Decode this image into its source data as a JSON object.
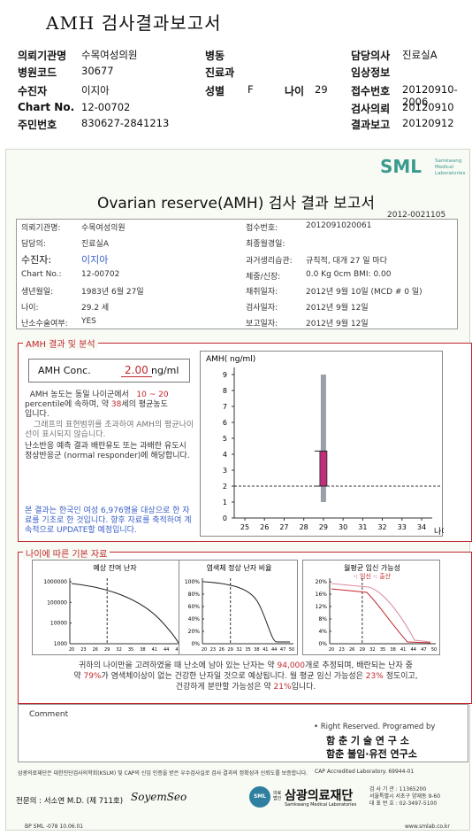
{
  "header": {
    "title": "AMH 검사결과보고서",
    "rows": [
      {
        "l1": "의뢰기관명",
        "v1": "수목여성의원",
        "l2": "병동",
        "v2": "",
        "l3": "담당의사",
        "v3": "진료실A"
      },
      {
        "l1": "병원코드",
        "v1": "30677",
        "l2": "진료과",
        "v2": "",
        "l3": "임상정보",
        "v3": ""
      },
      {
        "l1": "수진자",
        "v1": "이지아",
        "l2": "성별",
        "v2": "F",
        "l2b": "나이",
        "v2b": "29",
        "l3": "접수번호",
        "v3": "20120910-2006"
      },
      {
        "l1": "Chart No.",
        "v1": "12-00702",
        "l2": "",
        "v2": "",
        "l3": "검사의뢰",
        "v3": "20120910"
      },
      {
        "l1": "주민번호",
        "v1": "830627-2841213",
        "l2": "",
        "v2": "",
        "l3": "결과보고",
        "v3": "20120912"
      }
    ]
  },
  "report": {
    "logo": "SML",
    "logo_sub": [
      "Samkwang",
      "Medical",
      "Laboratories"
    ],
    "title": "Ovarian reserve(AMH) 검사 결과 보고서",
    "report_no": "2012-0021105",
    "left_fields": [
      {
        "label": "의뢰기관명:",
        "value": "수목여성의원"
      },
      {
        "label": "담당의:",
        "value": "진료실A"
      },
      {
        "label": "수진자:",
        "value": "이지아"
      },
      {
        "label": "Chart No.:",
        "value": "12-00702"
      },
      {
        "label": "생년월일:",
        "value": "1983년 6월 27일"
      },
      {
        "label": "나이:",
        "value": "29.2 세"
      },
      {
        "label": "난소수술여부:",
        "value": "YES"
      }
    ],
    "right_fields": [
      {
        "label": "접수번호:",
        "value": "20120910​20061"
      },
      {
        "label": "최종월경일:",
        "value": ""
      },
      {
        "label": "과거생리습관:",
        "value": "규칙적, 대개  27 일 마다"
      },
      {
        "label": "체중/신장:",
        "value": "0.0 Kg      0cm   BMI:  0.00"
      },
      {
        "label": "채취일자:",
        "value": "2012년 9월 10일   (MCD # 0 일)"
      },
      {
        "label": "검사일자:",
        "value": "2012년 9월 12일"
      },
      {
        "label": "보고일자:",
        "value": "2012년 9월 12일"
      }
    ]
  },
  "amh": {
    "section_title": "AMH 결과 및 분석",
    "conc_label": "AMH Conc.",
    "conc_value": "2.00",
    "conc_unit": "ng/ml",
    "text1a": "AMH 농도는 동일 나이군에서",
    "text1b": "10 ~ 20",
    "text1c": "percentile에 속하며, 약",
    "text1d": "38",
    "text1e": "세의 평균농도",
    "text1f": "입니다.",
    "text2": "그래프의 표현범위를 초과하여 AMH의 평균나이선이 표시되지 않습니다.",
    "text3": "난소반응 예측 결과 배란유도 또는 과배란 유도시 정상반응군 (normal responder)에 해당합니다.",
    "text4": "본 결과는 한국인 여성 6,976명을 대상으로 한 자료를 기초로 한 것입니다. 향후 자료를 축적하여 계속적으로 UPDATE할 예정입니다."
  },
  "chart_data": [
    {
      "type": "bar",
      "ylabel": "AMH( ng/ml)",
      "xlabel": "나이",
      "x_ticks": [
        "25",
        "26",
        "27",
        "28",
        "29",
        "30",
        "31",
        "32",
        "33",
        "34"
      ],
      "y_ticks": [
        "0",
        "1",
        "2",
        "3",
        "4",
        "5",
        "6",
        "7",
        "8",
        "9"
      ],
      "ylim": [
        0,
        9
      ],
      "range_bar": {
        "x": 29,
        "low": 1,
        "high": 9
      },
      "value_bar": {
        "x": 29,
        "low": 2,
        "high": 4.2
      },
      "reference_line": 2
    },
    {
      "type": "line",
      "title": "예상 잔여 난자",
      "y_ticks": [
        "1000000",
        "100000",
        "10000",
        "1000"
      ],
      "x_ticks": [
        "20",
        "23",
        "26",
        "29",
        "32",
        "35",
        "38",
        "41",
        "44",
        "47",
        "50"
      ],
      "marker_x": 29
    },
    {
      "type": "line",
      "title": "염색체 정상 난자 비율",
      "y_ticks": [
        "100%",
        "80%",
        "60%",
        "40%",
        "20%",
        "0%"
      ],
      "x_ticks": [
        "20",
        "23",
        "26",
        "29",
        "32",
        "35",
        "38",
        "41",
        "44",
        "47",
        "50"
      ],
      "marker_x": 29
    },
    {
      "type": "line",
      "title": "월평균 임신 가능성",
      "legend": "-: 임신 -: 출산",
      "y_ticks": [
        "20%",
        "16%",
        "12%",
        "8%",
        "4%",
        "0%"
      ],
      "x_ticks": [
        "20",
        "23",
        "26",
        "29",
        "32",
        "35",
        "38",
        "41",
        "44",
        "47",
        "50"
      ],
      "marker_x": 29
    }
  ],
  "basic": {
    "section_title": "나이에 따른 기본 자료",
    "summary_a": "귀하의 나이만을 고려하였을 때 난소에 남아 있는 난자는 약",
    "summary_b": "94,000",
    "summary_c": "개로 추정되며, 배란되는 난자 중",
    "summary_d": "약",
    "summary_e": "79%",
    "summary_f": "가 염색체이상이 없는 건강한 난자일 것으로 예상됩니다. 월 평균 임신 가능성은",
    "summary_g": "23%",
    "summary_h": "정도이고,",
    "summary_i": "건강하게 분만할 가능성은 약",
    "summary_j": "21%",
    "summary_k": "입니다."
  },
  "comment": {
    "label": "Comment",
    "rights": "• Right Reserved. Programed by",
    "org1": "함 춘  기 술  연 구 소",
    "org2": "함춘 불임·유전 연구소"
  },
  "footer": {
    "cert": "삼광의료재단은 대한진단검사의학회(KSLM) 및 CAP의 신임 인증을 받은 우수검사실로 검사 결과의 정확성과 신뢰도를 보증합니다.",
    "cap": "CAP Accredited  Laboratory.  69944-01",
    "doctor": "전문의 : 서소연 M.D. (제 711호)",
    "signature": "SoyemSeo",
    "foundation_small": "의료 법인",
    "foundation": "삼광의료재단",
    "foundation_en": "Samkwang Medical Laboratories",
    "addr1": "검 사 기 관 : 11365200",
    "addr2": "서울특별시 서초구 양재동 9-60",
    "addr3": "대 표 번 호 : 02-3497-5100",
    "code": "BP  SML  -078  10.06.01",
    "web": "www.smlab.co.kr"
  }
}
